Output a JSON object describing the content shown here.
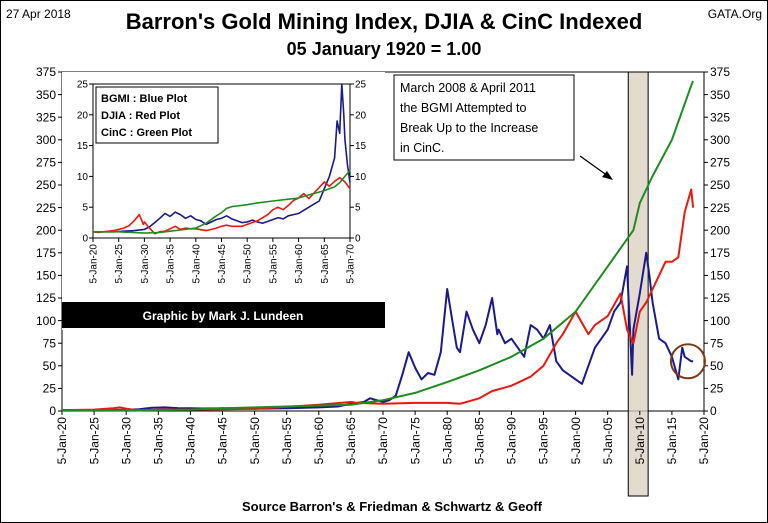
{
  "header": {
    "date": "27 Apr 2018",
    "source_site": "GATA.Org",
    "title": "Barron's Gold Mining Index, DJIA & CinC Indexed",
    "subtitle": "05 January 1920 = 1.00"
  },
  "annotation": {
    "lines": [
      "March 2008 & April 2011",
      "the BGMI Attempted to",
      "Break Up to the Increase",
      "in CinC."
    ]
  },
  "credit": "Graphic by Mark J. Lundeen",
  "footer": {
    "source": "Source Barron's & Friedman & Schwartz & Geoff"
  },
  "colors": {
    "bgmi": "#1a1a8c",
    "djia": "#e8190e",
    "cinc": "#1e8c1e",
    "highlight": "#d9cfc0",
    "circle": "#7a3b1b"
  },
  "chart_data": [
    {
      "id": "main",
      "type": "line",
      "title": "Barron's Gold Mining Index, DJIA & CinC Indexed",
      "subtitle": "05 January 1920 = 1.00",
      "xlabel": "",
      "ylabel": "",
      "xlim": [
        1920,
        2020
      ],
      "ylim": [
        0,
        375
      ],
      "yticks": [
        0,
        25,
        50,
        75,
        100,
        125,
        150,
        175,
        200,
        225,
        250,
        275,
        300,
        325,
        350,
        375
      ],
      "xticks": [
        "5-Jan-20",
        "5-Jan-25",
        "5-Jan-30",
        "5-Jan-35",
        "5-Jan-40",
        "5-Jan-45",
        "5-Jan-50",
        "5-Jan-55",
        "5-Jan-60",
        "5-Jan-65",
        "5-Jan-70",
        "5-Jan-75",
        "5-Jan-80",
        "5-Jan-85",
        "5-Jan-90",
        "5-Jan-95",
        "5-Jan-00",
        "5-Jan-05",
        "5-Jan-10",
        "5-Jan-15",
        "5-Jan-20"
      ],
      "y_axis_both_sides": true,
      "grid": false,
      "highlight_band": [
        2008.2,
        2011.3
      ],
      "circle_marker": {
        "x": 2017.5,
        "y": 55
      },
      "series": [
        {
          "name": "BGMI",
          "x": [
            1920,
            1925,
            1930,
            1932,
            1934,
            1936,
            1938,
            1940,
            1942,
            1945,
            1950,
            1955,
            1960,
            1963,
            1965,
            1967,
            1968,
            1969,
            1970,
            1971,
            1972,
            1973,
            1974,
            1975,
            1976,
            1977,
            1978,
            1979,
            1980,
            1980.8,
            1981.5,
            1982,
            1983,
            1984,
            1985,
            1986,
            1987,
            1987.8,
            1988,
            1989,
            1990,
            1991,
            1992,
            1993,
            1994,
            1995,
            1996,
            1997,
            1998,
            1999,
            2000,
            2001,
            2002,
            2003,
            2004,
            2005,
            2006,
            2007,
            2008,
            2008.8,
            2009,
            2010,
            2011,
            2011.5,
            2012,
            2013,
            2014,
            2015,
            2016,
            2016.6,
            2017,
            2018,
            2018.3
          ],
          "y": [
            1,
            1,
            1.3,
            2,
            3.5,
            4,
            3.2,
            3,
            2.8,
            3,
            2.5,
            3,
            4,
            5,
            8,
            10,
            14,
            12,
            10,
            12,
            17,
            40,
            65,
            48,
            35,
            42,
            40,
            65,
            135,
            100,
            70,
            65,
            110,
            90,
            75,
            95,
            125,
            85,
            90,
            75,
            80,
            70,
            60,
            95,
            90,
            80,
            95,
            55,
            45,
            40,
            35,
            30,
            50,
            70,
            80,
            90,
            110,
            120,
            160,
            40,
            90,
            130,
            175,
            150,
            120,
            80,
            75,
            60,
            35,
            70,
            60,
            55,
            55
          ]
        },
        {
          "name": "DJIA",
          "x": [
            1920,
            1925,
            1928,
            1929,
            1930,
            1932,
            1935,
            1940,
            1945,
            1950,
            1955,
            1960,
            1965,
            1966,
            1970,
            1975,
            1980,
            1982,
            1985,
            1987,
            1990,
            1993,
            1995,
            1997,
            1998,
            2000,
            2002,
            2003,
            2005,
            2007,
            2008,
            2009,
            2010,
            2011,
            2013,
            2014,
            2015,
            2016,
            2017,
            2018,
            2018.3
          ],
          "y": [
            1,
            1.5,
            3,
            4,
            2.5,
            0.6,
            1.5,
            1.5,
            2,
            2.5,
            4.5,
            7,
            10,
            9,
            8,
            9,
            9,
            8,
            14,
            22,
            28,
            38,
            50,
            75,
            85,
            110,
            85,
            95,
            105,
            130,
            90,
            75,
            110,
            120,
            150,
            165,
            165,
            170,
            220,
            245,
            225
          ]
        },
        {
          "name": "CinC",
          "x": [
            1920,
            1930,
            1935,
            1940,
            1945,
            1950,
            1955,
            1960,
            1965,
            1970,
            1975,
            1980,
            1985,
            1990,
            1995,
            2000,
            2005,
            2008,
            2009,
            2010,
            2012,
            2015,
            2018,
            2018.3
          ],
          "y": [
            1,
            0.8,
            1,
            1.5,
            3,
            4,
            5,
            6,
            7,
            12,
            20,
            32,
            45,
            60,
            80,
            110,
            160,
            190,
            200,
            230,
            260,
            300,
            360,
            365
          ]
        }
      ]
    },
    {
      "id": "inset",
      "type": "line",
      "title": "",
      "xlim": [
        1920,
        1970
      ],
      "ylim": [
        0,
        25
      ],
      "yticks": [
        0,
        5,
        10,
        15,
        20,
        25
      ],
      "xticks": [
        "5-Jan-20",
        "5-Jan-25",
        "5-Jan-30",
        "5-Jan-35",
        "5-Jan-40",
        "5-Jan-45",
        "5-Jan-50",
        "5-Jan-55",
        "5-Jan-60",
        "5-Jan-65",
        "5-Jan-70"
      ],
      "y_axis_both_sides": true,
      "legend": [
        "BGMI  : Blue Plot",
        "DJIA  : Red Plot",
        "CinC  : Green Plot"
      ],
      "legend_position": "top-left",
      "series": [
        {
          "name": "BGMI",
          "x": [
            1920,
            1924,
            1926,
            1928,
            1930,
            1931,
            1932,
            1933,
            1934,
            1935,
            1936,
            1937,
            1938,
            1939,
            1940,
            1941,
            1942,
            1943,
            1944,
            1945,
            1946,
            1947,
            1948,
            1949,
            1950,
            1951,
            1952,
            1953,
            1954,
            1955,
            1956,
            1957,
            1958,
            1959,
            1960,
            1961,
            1962,
            1963,
            1964,
            1965,
            1966,
            1967,
            1967.5,
            1968,
            1968.4,
            1968.8,
            1969,
            1969.5,
            1970
          ],
          "y": [
            1,
            1,
            1.1,
            1.2,
            1.4,
            1.8,
            2.5,
            3.2,
            4,
            3.5,
            4.2,
            3.8,
            3.2,
            3.6,
            3,
            2.8,
            2.2,
            2.6,
            3,
            3.2,
            3.6,
            3.1,
            2.8,
            2.5,
            2.6,
            2.9,
            2.6,
            2.4,
            2.7,
            3,
            3.3,
            3.1,
            3.6,
            3.8,
            4,
            4.5,
            5,
            5.5,
            6,
            8,
            10,
            13,
            19,
            17,
            25,
            20,
            16,
            12,
            9
          ]
        },
        {
          "name": "DJIA",
          "x": [
            1920,
            1921,
            1924,
            1926,
            1927,
            1928,
            1929,
            1929.8,
            1930,
            1931,
            1932,
            1933,
            1934,
            1935,
            1936,
            1937,
            1938,
            1939,
            1940,
            1942,
            1944,
            1945,
            1946,
            1947,
            1949,
            1950,
            1952,
            1954,
            1955,
            1956,
            1957,
            1958,
            1959,
            1960,
            1961,
            1962,
            1963,
            1964,
            1965,
            1966,
            1967,
            1968,
            1969,
            1970
          ],
          "y": [
            1,
            0.9,
            1.2,
            1.6,
            2,
            2.8,
            3.8,
            2.2,
            2.6,
            1.6,
            0.7,
            1,
            1.1,
            1.5,
            1.9,
            1.4,
            1.6,
            1.5,
            1.5,
            1.2,
            1.6,
            1.9,
            2.1,
            1.9,
            1.9,
            2.2,
            2.8,
            3.8,
            4.6,
            5,
            4.6,
            5.3,
            6.1,
            6.5,
            7.2,
            6.4,
            7.3,
            8.2,
            9.1,
            8.4,
            9.2,
            9.8,
            9.1,
            8
          ]
        },
        {
          "name": "CinC",
          "x": [
            1920,
            1925,
            1930,
            1933,
            1935,
            1937,
            1940,
            1942,
            1944,
            1945,
            1946,
            1947,
            1948,
            1950,
            1952,
            1955,
            1958,
            1960,
            1962,
            1965,
            1967,
            1968,
            1969,
            1970
          ],
          "y": [
            1,
            1,
            0.8,
            0.9,
            1.1,
            1.3,
            1.6,
            2.4,
            3.6,
            4.1,
            4.8,
            5.1,
            5.2,
            5.4,
            5.7,
            6,
            6.3,
            6.5,
            7,
            7.7,
            8.3,
            9,
            10,
            11
          ]
        }
      ]
    }
  ]
}
